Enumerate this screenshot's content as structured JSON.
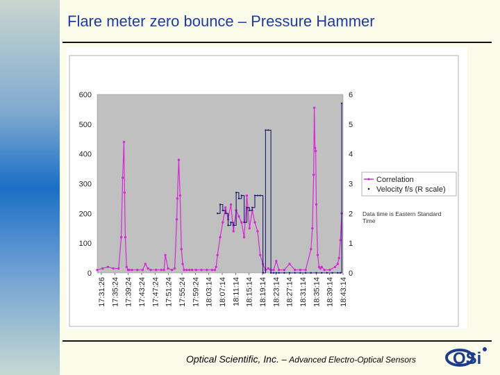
{
  "slide": {
    "title": "Flare meter zero bounce – Pressure Hammer",
    "footer_company": "Optical Scientific, Inc.",
    "footer_separator": " – ",
    "footer_tagline": "Advanced Electro-Optical Sensors",
    "logo_text": "OSi"
  },
  "colors": {
    "plot_bg": "#c0c0c0",
    "correlation": "#d42ad4",
    "velocity": "#1a1a6e",
    "title": "#1d3ba8",
    "logo": "#1d3b8f"
  },
  "chart_data": {
    "type": "line",
    "categories": [
      "17:31:26",
      "17:35:24",
      "17:39:24",
      "17:43:24",
      "17:47:24",
      "17:51:24",
      "17:55:24",
      "17:59:24",
      "18:03:14",
      "18:07:14",
      "18:11:14",
      "18:15:14",
      "18:19:14",
      "18:23:14",
      "18:27:14",
      "18:31:14",
      "18:35:14",
      "18:39:14",
      "18:43:14"
    ],
    "y_left": {
      "ylim": [
        0,
        600
      ],
      "ticks": [
        "0",
        "100",
        "200",
        "300",
        "400",
        "500",
        "600"
      ]
    },
    "y_right": {
      "ylim": [
        0,
        6
      ],
      "ticks": [
        "0",
        "1",
        "2",
        "3",
        "4",
        "5",
        "6"
      ]
    },
    "grid": false,
    "legend": {
      "position": "right",
      "entries": [
        "Correlation",
        "Velocity f/s (R scale)"
      ]
    },
    "annotation": "Data time is Eastern Standard Time",
    "x_range": [
      0,
      18.4
    ],
    "series": [
      {
        "name": "Correlation",
        "axis": "left",
        "x": [
          0.0,
          0.4,
          0.8,
          1.2,
          1.6,
          1.8,
          1.9,
          2.0,
          2.05,
          2.1,
          2.2,
          2.3,
          2.4,
          2.6,
          3.0,
          3.4,
          3.6,
          3.8,
          4.0,
          4.4,
          4.8,
          5.0,
          5.1,
          5.3,
          5.6,
          5.8,
          5.95,
          6.0,
          6.1,
          6.2,
          6.3,
          6.4,
          6.5,
          6.7,
          6.9,
          7.1,
          7.4,
          7.8,
          8.2,
          8.6,
          8.8,
          8.9,
          9.0,
          9.2,
          9.4,
          9.6,
          9.8,
          10.0,
          10.2,
          10.4,
          10.6,
          10.8,
          11.0,
          11.2,
          11.4,
          11.6,
          11.8,
          12.0,
          12.2,
          12.4,
          12.6,
          12.8,
          13.0,
          13.2,
          13.4,
          13.6,
          14.0,
          14.4,
          14.8,
          15.2,
          15.6,
          16.0,
          16.1,
          16.2,
          16.25,
          16.3,
          16.35,
          16.4,
          16.5,
          16.6,
          16.7,
          16.8,
          17.0,
          17.4,
          17.8,
          18.0,
          18.1,
          18.2,
          18.3
        ],
        "values": [
          10,
          15,
          20,
          15,
          15,
          120,
          320,
          440,
          270,
          120,
          20,
          10,
          10,
          10,
          10,
          10,
          30,
          15,
          10,
          10,
          10,
          10,
          60,
          15,
          10,
          15,
          180,
          250,
          380,
          260,
          80,
          30,
          10,
          10,
          10,
          10,
          10,
          10,
          10,
          10,
          10,
          20,
          60,
          120,
          170,
          220,
          180,
          230,
          140,
          210,
          190,
          170,
          120,
          260,
          150,
          210,
          170,
          140,
          60,
          30,
          10,
          15,
          10,
          10,
          40,
          10,
          10,
          30,
          10,
          10,
          10,
          80,
          150,
          330,
          555,
          420,
          410,
          230,
          60,
          20,
          15,
          20,
          10,
          10,
          20,
          30,
          50,
          110,
          200
        ]
      },
      {
        "name": "Velocity f/s (R scale)",
        "axis": "right",
        "x": [
          9.0,
          9.2,
          9.4,
          9.6,
          9.8,
          10.0,
          10.2,
          10.4,
          10.6,
          10.8,
          11.0,
          11.2,
          11.4,
          11.6,
          11.8,
          12.0,
          12.2,
          12.4,
          12.6,
          12.8,
          13.0,
          13.2,
          13.4,
          13.6,
          14.0,
          14.4,
          14.8,
          15.2,
          15.6,
          16.0,
          16.4,
          16.8,
          17.2,
          17.6,
          18.0,
          18.2,
          18.3
        ],
        "values": [
          2.0,
          2.3,
          2.1,
          2.0,
          1.6,
          1.7,
          1.6,
          2.7,
          2.5,
          2.6,
          1.7,
          2.2,
          2.1,
          2.2,
          2.6,
          2.6,
          2.6,
          0.0,
          4.8,
          4.8,
          0.0,
          0.0,
          0.0,
          0.0,
          0.0,
          0.0,
          0.0,
          0.0,
          0.0,
          0.0,
          0.0,
          0.0,
          0.0,
          0.0,
          0.0,
          0.0,
          5.7
        ]
      }
    ]
  }
}
